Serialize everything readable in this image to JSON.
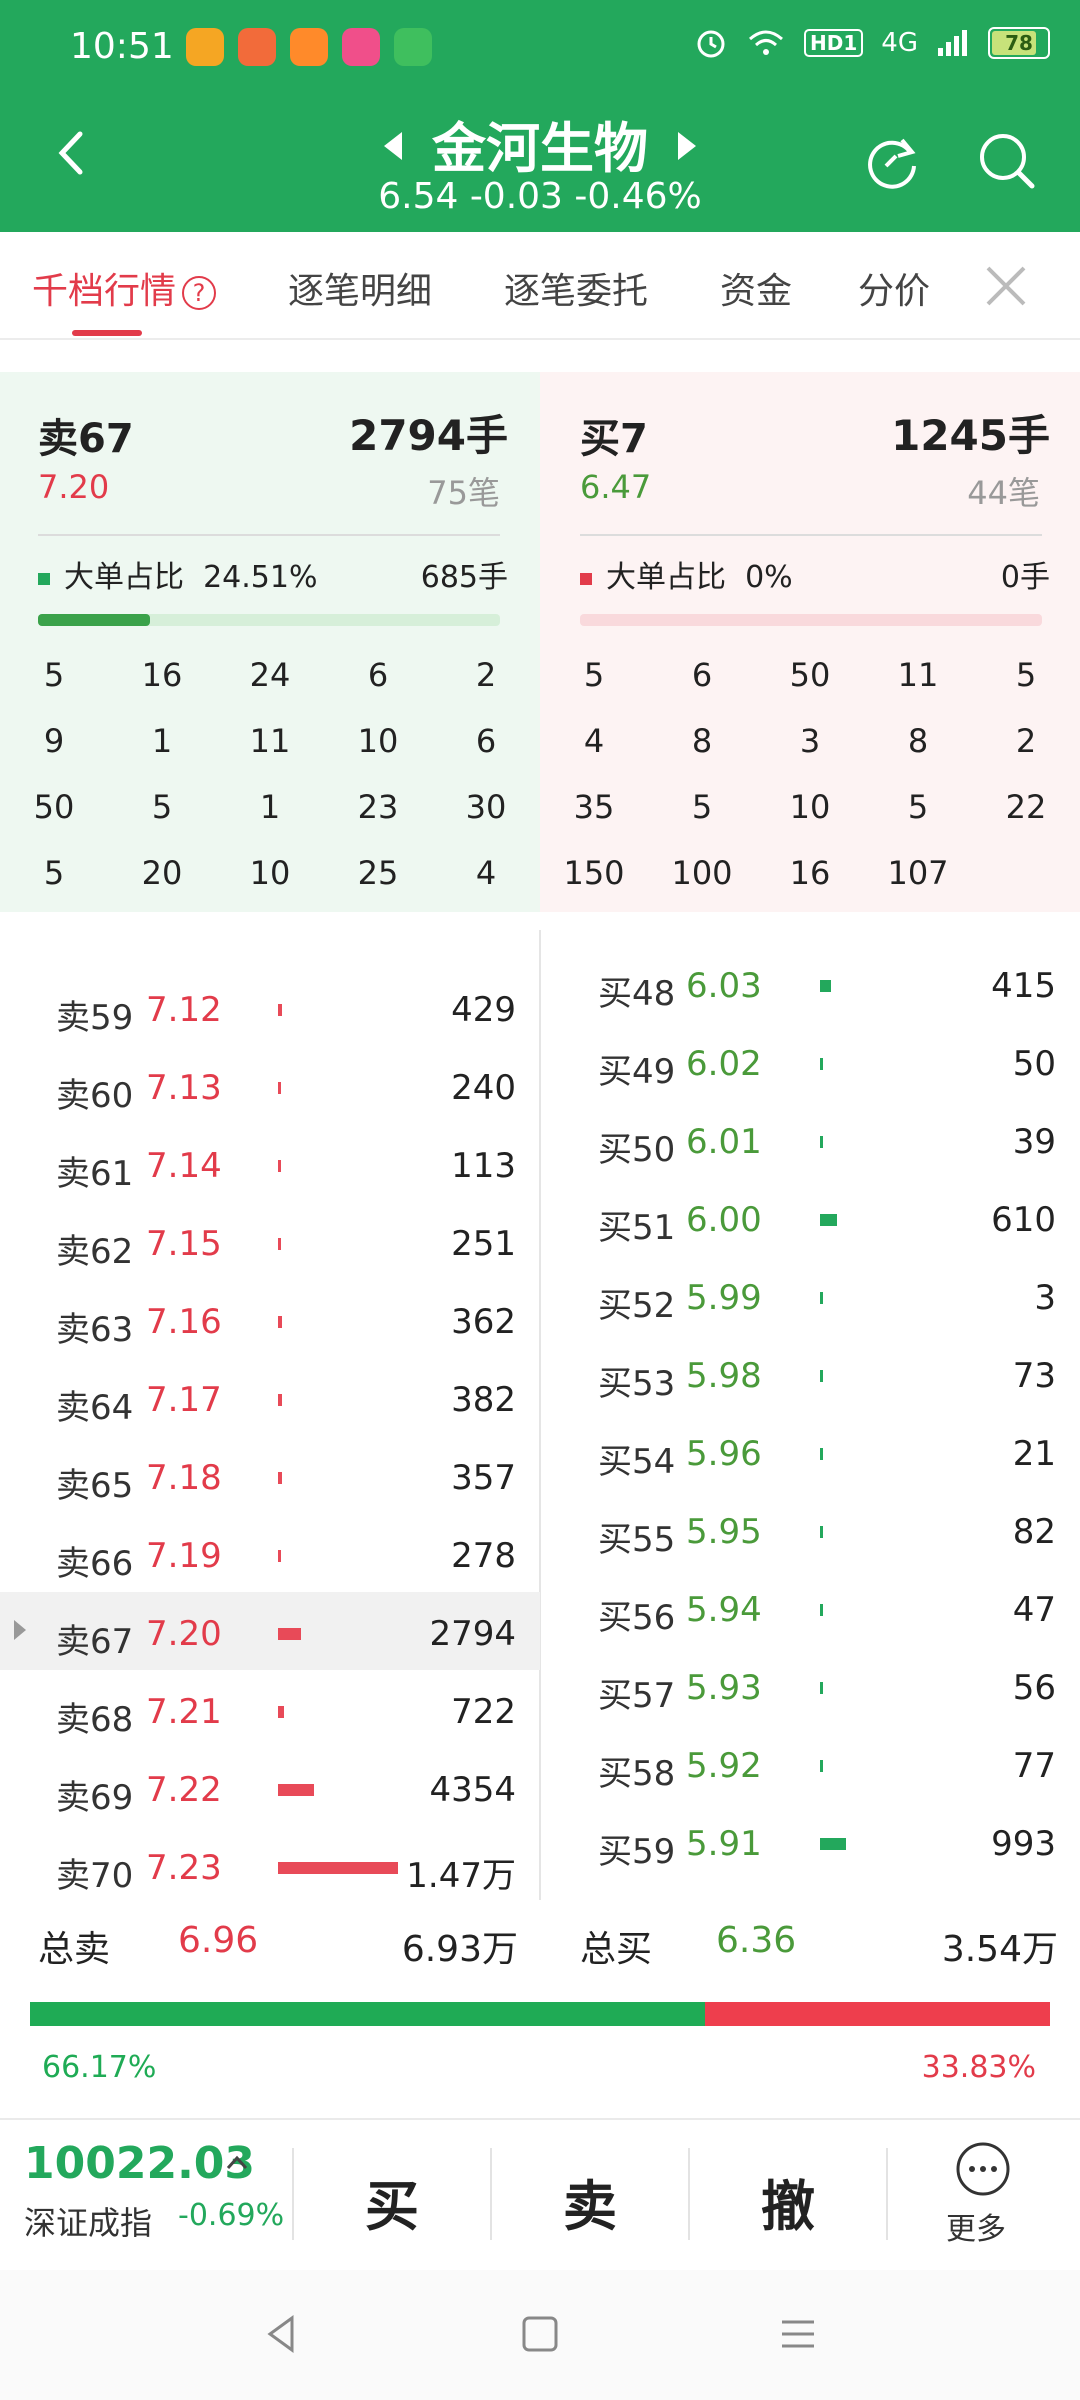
{
  "status_bar": {
    "time": "10:51",
    "network": "4G",
    "hd": "HD1",
    "battery": "78"
  },
  "header": {
    "title": "金河生物",
    "quote": "6.54 -0.03 -0.46%"
  },
  "tabs": [
    {
      "label": "千档行情"
    },
    {
      "label": "逐笔明细"
    },
    {
      "label": "逐笔委托"
    },
    {
      "label": "资金"
    },
    {
      "label": "分价"
    }
  ],
  "summary": {
    "sell": {
      "label": "卖67",
      "volume": "2794手",
      "price": "7.20",
      "trades": "75笔",
      "big_ratio_label": "大单占比",
      "big_ratio": "24.51%",
      "big_volume": "685手"
    },
    "buy": {
      "label": "买7",
      "volume": "1245手",
      "price": "6.47",
      "trades": "44笔",
      "big_ratio_label": "大单占比",
      "big_ratio": "0%",
      "big_volume": "0手"
    }
  },
  "sell_grid": [
    [
      "5",
      "16",
      "24",
      "6",
      "2"
    ],
    [
      "9",
      "1",
      "11",
      "10",
      "6"
    ],
    [
      "50",
      "5",
      "1",
      "23",
      "30"
    ],
    [
      "5",
      "20",
      "10",
      "25",
      "4"
    ]
  ],
  "buy_grid": [
    [
      "5",
      "6",
      "50",
      "11",
      "5"
    ],
    [
      "4",
      "8",
      "3",
      "8",
      "2"
    ],
    [
      "35",
      "5",
      "10",
      "5",
      "22"
    ],
    [
      "150",
      "100",
      "16",
      "107",
      ""
    ]
  ],
  "sell_rows": [
    {
      "label": "卖59",
      "price": "7.12",
      "vol": "429",
      "bar": 0.3
    },
    {
      "label": "卖60",
      "price": "7.13",
      "vol": "240",
      "bar": 0.2
    },
    {
      "label": "卖61",
      "price": "7.14",
      "vol": "113",
      "bar": 0.2
    },
    {
      "label": "卖62",
      "price": "7.15",
      "vol": "251",
      "bar": 0.2
    },
    {
      "label": "卖63",
      "price": "7.16",
      "vol": "362",
      "bar": 0.3
    },
    {
      "label": "卖64",
      "price": "7.17",
      "vol": "382",
      "bar": 0.3
    },
    {
      "label": "卖65",
      "price": "7.18",
      "vol": "357",
      "bar": 0.3
    },
    {
      "label": "卖66",
      "price": "7.19",
      "vol": "278",
      "bar": 0.2
    },
    {
      "label": "卖67",
      "price": "7.20",
      "vol": "2794",
      "bar": 1.9
    },
    {
      "label": "卖68",
      "price": "7.21",
      "vol": "722",
      "bar": 0.5
    },
    {
      "label": "卖69",
      "price": "7.22",
      "vol": "4354",
      "bar": 3.0
    },
    {
      "label": "卖70",
      "price": "7.23",
      "vol": "1.47万",
      "bar": 10.0
    }
  ],
  "buy_rows": [
    {
      "label": "买48",
      "price": "6.03",
      "vol": "415",
      "bar": 0.9
    },
    {
      "label": "买49",
      "price": "6.02",
      "vol": "50",
      "bar": 0.2
    },
    {
      "label": "买50",
      "price": "6.01",
      "vol": "39",
      "bar": 0.2
    },
    {
      "label": "买51",
      "price": "6.00",
      "vol": "610",
      "bar": 1.4
    },
    {
      "label": "买52",
      "price": "5.99",
      "vol": "3",
      "bar": 0.2
    },
    {
      "label": "买53",
      "price": "5.98",
      "vol": "73",
      "bar": 0.2
    },
    {
      "label": "买54",
      "price": "5.96",
      "vol": "21",
      "bar": 0.2
    },
    {
      "label": "买55",
      "price": "5.95",
      "vol": "82",
      "bar": 0.2
    },
    {
      "label": "买56",
      "price": "5.94",
      "vol": "47",
      "bar": 0.2
    },
    {
      "label": "买57",
      "price": "5.93",
      "vol": "56",
      "bar": 0.2
    },
    {
      "label": "买58",
      "price": "5.92",
      "vol": "77",
      "bar": 0.2
    },
    {
      "label": "买59",
      "price": "5.91",
      "vol": "993",
      "bar": 2.2
    }
  ],
  "totals": {
    "sell_label": "总卖",
    "sell_price": "6.96",
    "sell_vol": "6.93万",
    "buy_label": "总买",
    "buy_price": "6.36",
    "buy_vol": "3.54万",
    "sell_pct": "66.17%",
    "buy_pct": "33.83%",
    "sell_fraction": 0.6617
  },
  "trade_bar": {
    "index_value": "10022.03",
    "index_name": "深证成指",
    "index_change": "-0.69%",
    "buy": "买",
    "sell": "卖",
    "cancel": "撤",
    "more": "更多"
  },
  "colors": {
    "brand": "#23a85c",
    "up": "#e23b4a",
    "down": "#23a85c"
  }
}
